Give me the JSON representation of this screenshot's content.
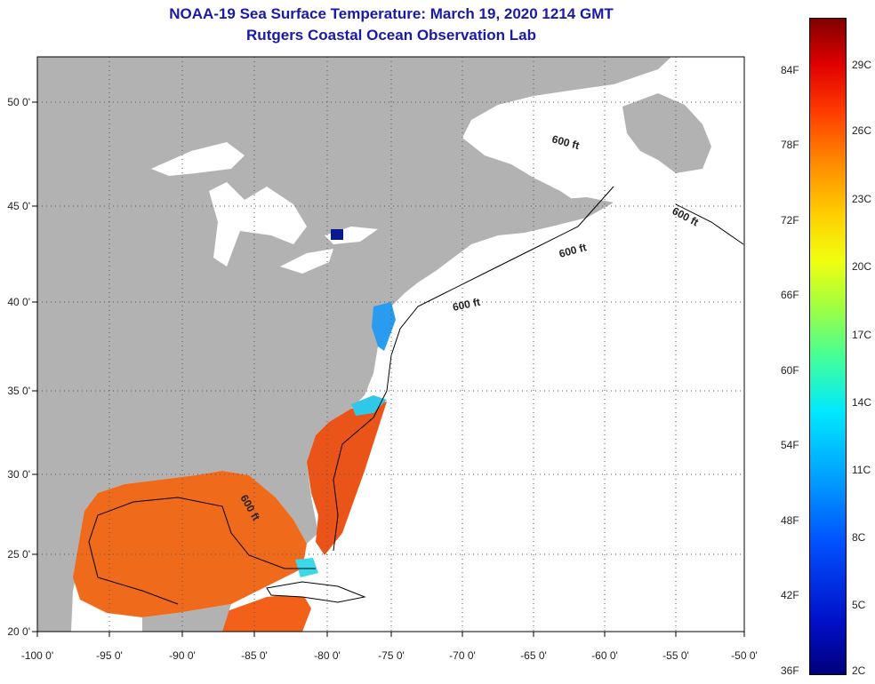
{
  "title": {
    "line1": "NOAA-19 Sea Surface Temperature:  March 19, 2020 1214 GMT",
    "line2": "Rutgers Coastal Ocean Observation Lab"
  },
  "map": {
    "lon_ticks": [
      "-100 0'",
      "-95 0'",
      "-90 0'",
      "-85 0'",
      "-80 0'",
      "-75 0'",
      "-70 0'",
      "-65 0'",
      "-60 0'",
      "-55 0'",
      "-50 0'"
    ],
    "lat_ticks": [
      "50 0'",
      "45 0'",
      "40 0'",
      "35 0'",
      "30 0'",
      "25 0'",
      "20 0'"
    ],
    "contour_label": "600 ft"
  },
  "colorbar": {
    "fahrenheit": [
      "84F",
      "78F",
      "72F",
      "66F",
      "60F",
      "54F",
      "48F",
      "42F",
      "36F"
    ],
    "celsius": [
      "29C",
      "26C",
      "23C",
      "20C",
      "17C",
      "14C",
      "11C",
      "8C",
      "5C",
      "2C"
    ]
  },
  "colors": {
    "land": "#b2b2b2",
    "ocean_nodata": "#ffffff",
    "warm": "#f06a1c",
    "title": "#1a1aa8"
  }
}
